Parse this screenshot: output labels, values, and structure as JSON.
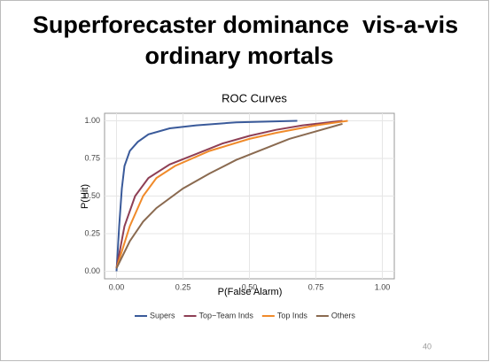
{
  "slide": {
    "title_lines": [
      "Superforecaster dominance  vis-a-vis",
      "ordinary mortals"
    ],
    "page_number": "40"
  },
  "chart_data": {
    "type": "line",
    "title": "ROC Curves",
    "x_label": "P(False Alarm)",
    "y_label": "P(Hit)",
    "xlim": [
      -0.045,
      1.045
    ],
    "ylim": [
      -0.05,
      1.05
    ],
    "xticks": [
      {
        "value": 0,
        "label": "0.00"
      },
      {
        "value": 0.25,
        "label": "0.25"
      },
      {
        "value": 0.5,
        "label": "0.50"
      },
      {
        "value": 0.75,
        "label": "0.75"
      },
      {
        "value": 1,
        "label": "1.00"
      }
    ],
    "yticks": [
      {
        "value": 0,
        "label": "0.00"
      },
      {
        "value": 0.25,
        "label": "0.25"
      },
      {
        "value": 0.5,
        "label": "0.50"
      },
      {
        "value": 0.75,
        "label": "0.75"
      },
      {
        "value": 1,
        "label": "1.00"
      }
    ],
    "grid": true,
    "legend": "bottom",
    "series": [
      {
        "name": "Supers",
        "color": "#3a5a9a",
        "x": [
          0,
          0.01,
          0.02,
          0.03,
          0.05,
          0.08,
          0.12,
          0.2,
          0.3,
          0.45,
          0.68
        ],
        "values": [
          0,
          0.3,
          0.55,
          0.7,
          0.8,
          0.86,
          0.91,
          0.95,
          0.97,
          0.99,
          1.0
        ]
      },
      {
        "name": "Top−Team Inds",
        "color": "#8e3f55",
        "x": [
          0,
          0.03,
          0.07,
          0.12,
          0.2,
          0.3,
          0.4,
          0.5,
          0.6,
          0.7,
          0.85
        ],
        "values": [
          0.02,
          0.3,
          0.5,
          0.62,
          0.71,
          0.78,
          0.85,
          0.9,
          0.94,
          0.97,
          1.0
        ]
      },
      {
        "name": "Top Inds",
        "color": "#f08a2a",
        "x": [
          0,
          0.05,
          0.1,
          0.15,
          0.22,
          0.35,
          0.5,
          0.6,
          0.75,
          0.87
        ],
        "values": [
          0.02,
          0.3,
          0.5,
          0.62,
          0.7,
          0.8,
          0.88,
          0.92,
          0.97,
          1.0
        ]
      },
      {
        "name": "Others",
        "color": "#8a6a50",
        "x": [
          0,
          0.05,
          0.1,
          0.15,
          0.25,
          0.35,
          0.45,
          0.55,
          0.65,
          0.75,
          0.85
        ],
        "values": [
          0.02,
          0.2,
          0.33,
          0.42,
          0.55,
          0.65,
          0.74,
          0.81,
          0.88,
          0.93,
          0.98
        ]
      }
    ]
  }
}
